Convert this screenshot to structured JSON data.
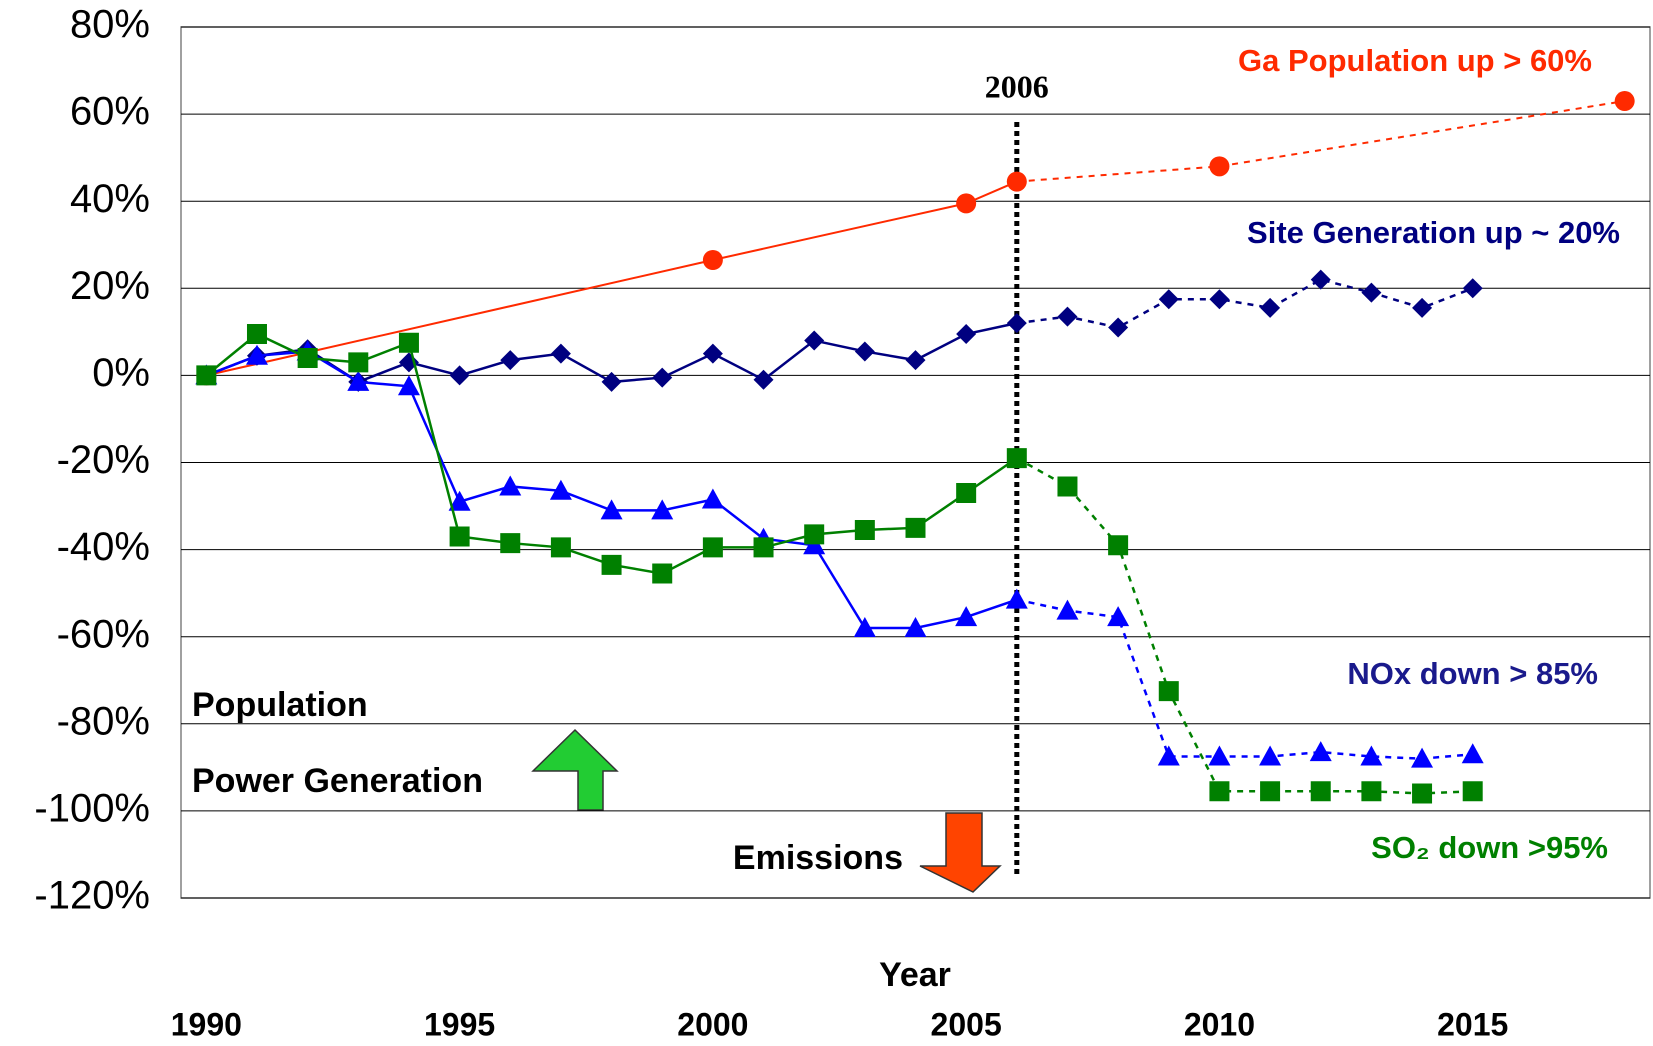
{
  "chart_data": {
    "type": "line",
    "x_label": "Year",
    "xlim": [
      1989.5,
      2018.5
    ],
    "xticks": [
      1990,
      1995,
      2000,
      2005,
      2010,
      2015
    ],
    "ylim": [
      -120,
      80
    ],
    "yticks": [
      {
        "value": -120,
        "label": "-120%"
      },
      {
        "value": -100,
        "label": "-100%"
      },
      {
        "value": -80,
        "label": "-80%"
      },
      {
        "value": -60,
        "label": "-60%"
      },
      {
        "value": -40,
        "label": "-40%"
      },
      {
        "value": -20,
        "label": "-20%"
      },
      {
        "value": 0,
        "label": "0%"
      },
      {
        "value": 20,
        "label": "20%"
      },
      {
        "value": 40,
        "label": "40%"
      },
      {
        "value": 60,
        "label": "60%"
      },
      {
        "value": 80,
        "label": "80%"
      }
    ],
    "grid": true,
    "vline": 2006,
    "series": [
      {
        "name": "Ga Population up > 60%",
        "color": "#ff2a00",
        "marker": "circle",
        "x": [
          1990,
          2000,
          2005,
          2006,
          2010,
          2018
        ],
        "values": [
          0,
          26.5,
          39.5,
          44.5,
          48,
          63
        ]
      },
      {
        "name": "Site Generation up ~ 20%",
        "color": "#000080",
        "marker": "diamond",
        "x": [
          1990,
          1991,
          1992,
          1993,
          1994,
          1995,
          1996,
          1997,
          1998,
          1999,
          2000,
          2001,
          2002,
          2003,
          2004,
          2005,
          2006,
          2007,
          2008,
          2009,
          2010,
          2011,
          2012,
          2013,
          2014,
          2015
        ],
        "values": [
          0,
          4.5,
          6,
          -1.5,
          3,
          0,
          3.5,
          5,
          -1.5,
          -0.5,
          5,
          -1,
          8,
          5.5,
          3.5,
          9.5,
          12,
          13.5,
          11,
          17.5,
          17.5,
          15.5,
          22,
          19,
          15.5,
          20
        ]
      },
      {
        "name": "NOx down > 85%",
        "color": "#0000ff",
        "label_color": "#1a1a8c",
        "marker": "triangle",
        "x": [
          1990,
          1991,
          1992,
          1993,
          1994,
          1995,
          1996,
          1997,
          1998,
          1999,
          2000,
          2001,
          2002,
          2003,
          2004,
          2005,
          2006,
          2007,
          2008,
          2009,
          2010,
          2011,
          2012,
          2013,
          2014,
          2015
        ],
        "values": [
          0,
          4.5,
          5.5,
          -1.5,
          -2.5,
          -29,
          -25.5,
          -26.5,
          -31,
          -31,
          -28.5,
          -37.5,
          -39,
          -58,
          -58,
          -55.5,
          -51.5,
          -54,
          -55.5,
          -87.5,
          -87.5,
          -87.5,
          -86.5,
          -87.5,
          -88,
          -87
        ]
      },
      {
        "name": "SO₂ down >95%",
        "color": "#008000",
        "marker": "square",
        "x": [
          1990,
          1991,
          1992,
          1993,
          1994,
          1995,
          1996,
          1997,
          1998,
          1999,
          2000,
          2001,
          2002,
          2003,
          2004,
          2005,
          2006,
          2007,
          2008,
          2009,
          2010,
          2011,
          2012,
          2013,
          2014,
          2015
        ],
        "values": [
          0,
          9.5,
          4,
          3,
          7.5,
          -37,
          -38.5,
          -39.5,
          -43.5,
          -45.5,
          -39.5,
          -39.5,
          -36.5,
          -35.5,
          -35,
          -27,
          -19,
          -25.5,
          -39,
          -72.5,
          -95.5,
          -95.5,
          -95.5,
          -95.5,
          -96,
          -95.5
        ]
      }
    ],
    "annotations": [
      "Population",
      "Power Generation",
      "Emissions"
    ]
  }
}
